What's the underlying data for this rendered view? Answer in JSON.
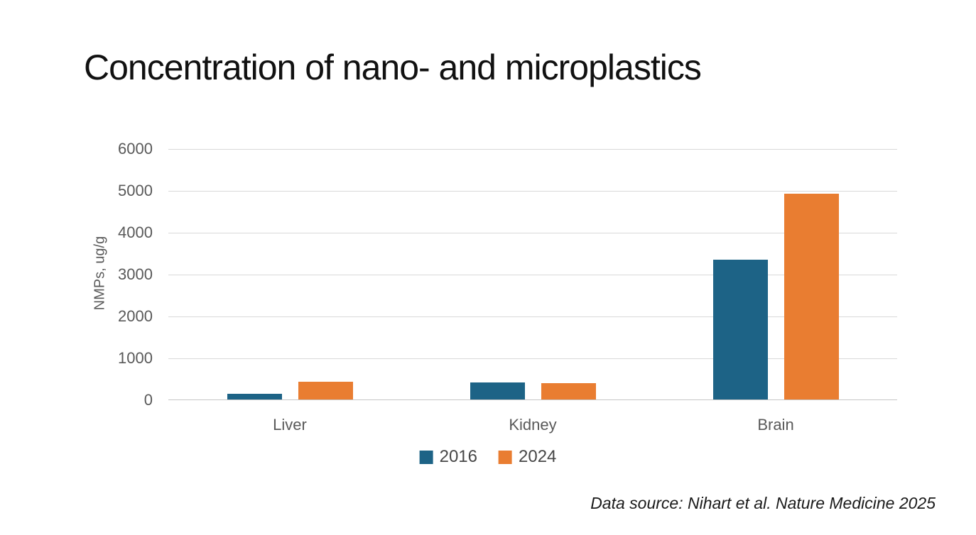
{
  "title": "Concentration of nano- and microplastics",
  "chart_data": {
    "type": "bar",
    "title": "Concentration of nano- and microplastics",
    "categories": [
      "Liver",
      "Kidney",
      "Brain"
    ],
    "series": [
      {
        "name": "2016",
        "color": "#1D6386",
        "values": [
          140,
          400,
          3340
        ]
      },
      {
        "name": "2024",
        "color": "#E97D31",
        "values": [
          430,
          390,
          4920
        ]
      }
    ],
    "xlabel": "",
    "ylabel": "NMPs, ug/g",
    "ylim": [
      0,
      6000
    ],
    "yticks": [
      0,
      1000,
      2000,
      3000,
      4000,
      5000,
      6000
    ],
    "grid": true,
    "legend_position": "bottom",
    "source_note": "Data source: Nihart et al. Nature Medicine 2025"
  },
  "colors": {
    "title_text": "#111111",
    "tick_label": "#595959",
    "axis_title": "#595959",
    "category_label": "#595959",
    "legend_text": "#474747",
    "footer_text": "#1A1A1A",
    "gridline": "#D9D9D9",
    "axis_line": "#C6C6C6",
    "background": "#FFFFFF"
  }
}
